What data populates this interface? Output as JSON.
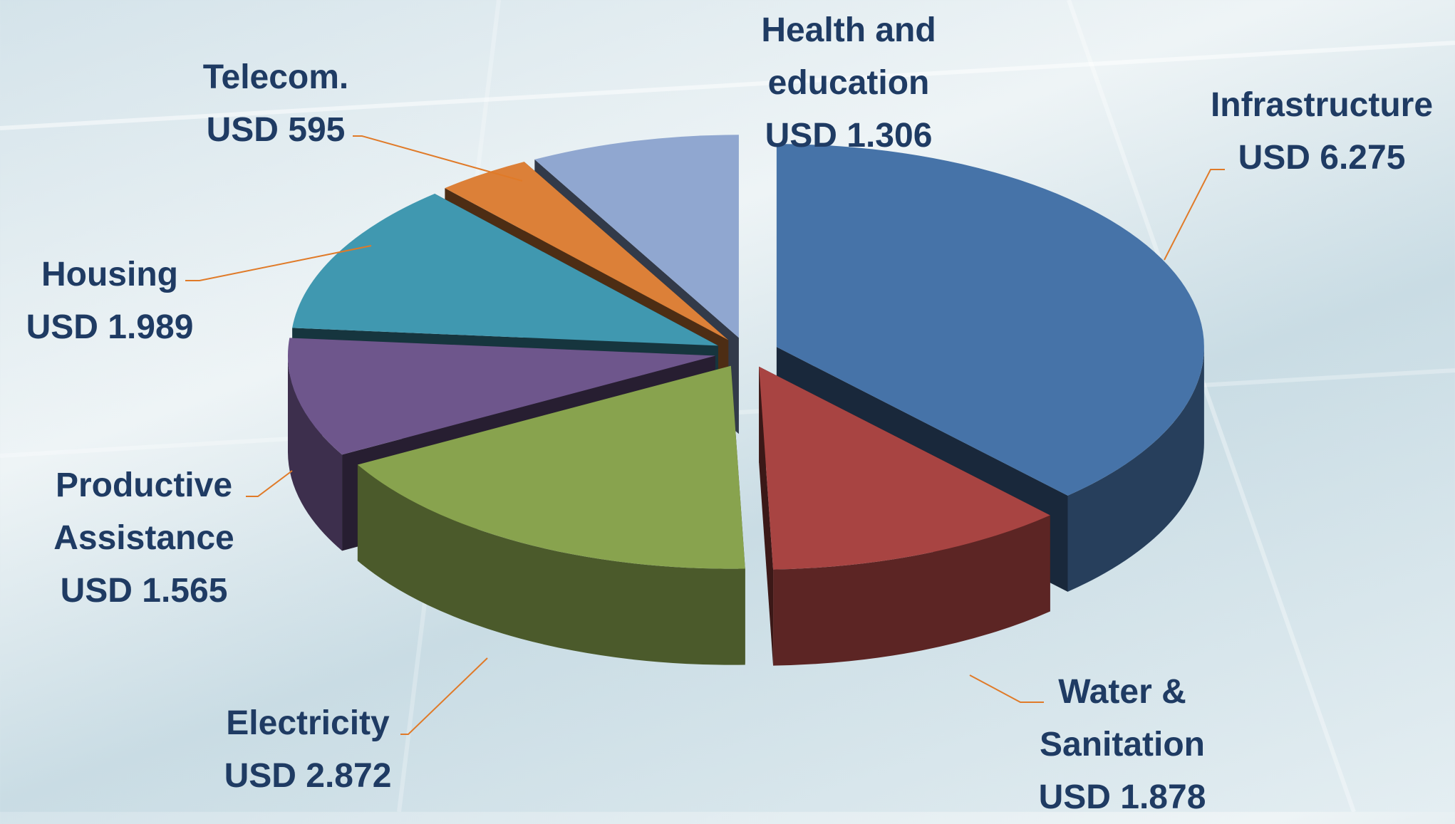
{
  "chart_data": {
    "type": "pie",
    "categories": [
      "Infrastructure",
      "Water & Sanitation",
      "Electricity",
      "Productive Assistance",
      "Housing",
      "Telecom.",
      "Health and education"
    ],
    "values": [
      6275,
      1878,
      2872,
      1565,
      1989,
      595,
      1306
    ],
    "value_labels": [
      "USD 6.275",
      "USD 1.878",
      "USD 2.872",
      "USD 1.565",
      "USD 1.989",
      "USD 595",
      "USD 1.306"
    ],
    "colors": [
      "#4673a8",
      "#a84442",
      "#88a34e",
      "#6e568c",
      "#4098b0",
      "#dc8038",
      "#90a7d0"
    ]
  }
}
